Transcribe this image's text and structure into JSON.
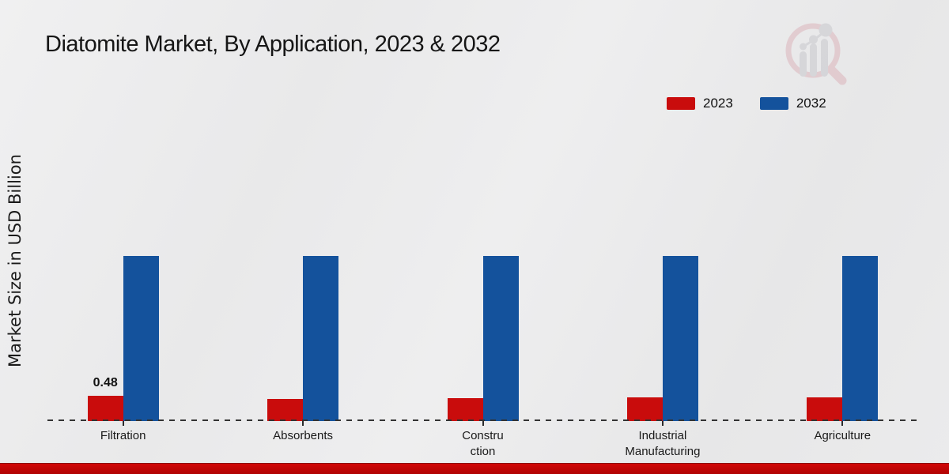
{
  "chart_data": {
    "type": "bar",
    "title": "Diatomite Market, By Application, 2023 & 2032",
    "xlabel": "",
    "ylabel": "Market Size in USD Billion",
    "categories": [
      "Filtration",
      "Absorbents",
      "Constru\nction",
      "Industrial\nManufacturing",
      "Agriculture"
    ],
    "series": [
      {
        "name": "2023",
        "color": "#c90c0c",
        "values": [
          0.48,
          0.42,
          0.44,
          0.45,
          0.45
        ]
      },
      {
        "name": "2032",
        "color": "#14529c",
        "values": [
          3.13,
          3.13,
          3.13,
          3.13,
          3.13
        ]
      }
    ],
    "value_labels": {
      "series": "2023",
      "labels": [
        "0.48",
        "",
        "",
        "",
        ""
      ]
    },
    "ylim": [
      0,
      3.6
    ],
    "grid": false,
    "legend_position": "top-right",
    "axis_line": "dashed",
    "units": "USD Billion"
  }
}
